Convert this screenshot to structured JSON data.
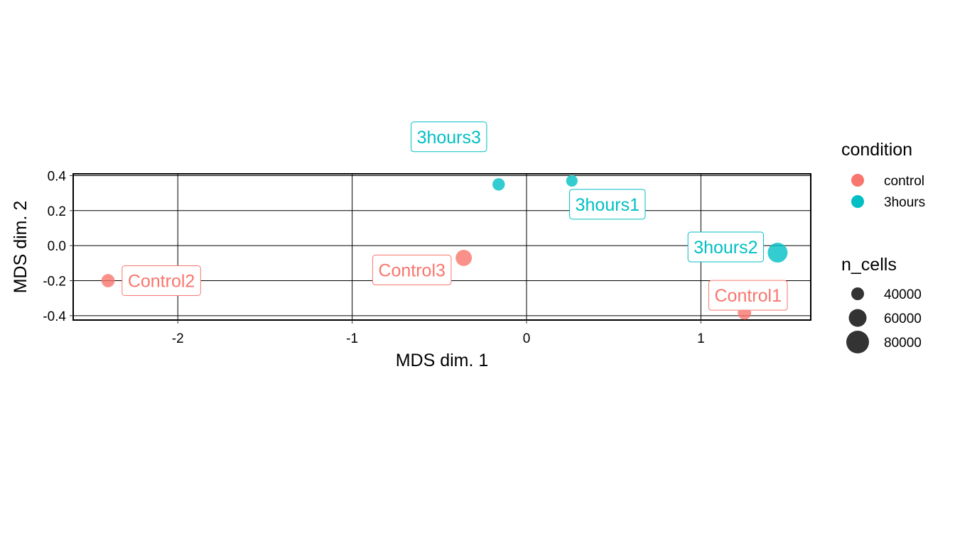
{
  "chart_data": {
    "type": "scatter",
    "xlabel": "MDS dim. 1",
    "ylabel": "MDS dim. 2",
    "xlim": [
      -2.6,
      1.63
    ],
    "ylim": [
      -0.425,
      0.41
    ],
    "xticks": [
      -2,
      -1,
      0,
      1
    ],
    "xtick_labels": [
      "-2",
      "-1",
      "0",
      "1"
    ],
    "yticks": [
      0.4,
      0.2,
      0.0,
      -0.2,
      -0.4
    ],
    "ytick_labels": [
      "0.4",
      "0.2",
      "0.0",
      "-0.2",
      "-0.4"
    ],
    "grid": true,
    "colors": {
      "control": "#F8766D",
      "3hours": "#00BFC4"
    },
    "points": [
      {
        "label": "Control2",
        "condition": "control",
        "x": -2.4,
        "y": -0.2,
        "n_cells": 40000
      },
      {
        "label": "Control3",
        "condition": "control",
        "x": -0.36,
        "y": -0.07,
        "n_cells": 60000
      },
      {
        "label": "Control1",
        "condition": "control",
        "x": 1.25,
        "y": -0.385,
        "n_cells": 40000
      },
      {
        "label": "3hours3",
        "condition": "3hours",
        "x": -0.16,
        "y": 0.35,
        "n_cells": 35000
      },
      {
        "label": "3hours1",
        "condition": "3hours",
        "x": 0.26,
        "y": 0.37,
        "n_cells": 30000
      },
      {
        "label": "3hours2",
        "condition": "3hours",
        "x": 1.44,
        "y": -0.04,
        "n_cells": 90000
      }
    ],
    "legend": {
      "placement": "right",
      "condition_title": "condition",
      "condition_items": [
        {
          "label": "control",
          "key": "control"
        },
        {
          "label": "3hours",
          "key": "3hours"
        }
      ],
      "size_title": "n_cells",
      "size_items": [
        {
          "label": "40000",
          "value": 40000
        },
        {
          "label": "60000",
          "value": 60000
        },
        {
          "label": "80000",
          "value": 80000
        }
      ]
    }
  }
}
